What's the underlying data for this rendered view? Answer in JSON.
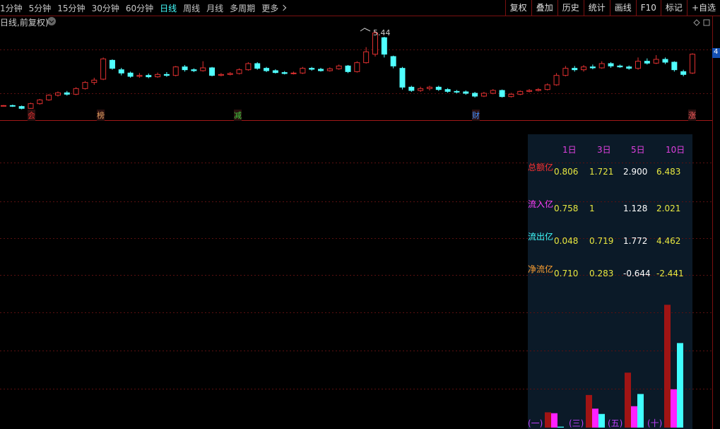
{
  "toolbar": {
    "periods": [
      "1分钟",
      "5分钟",
      "15分钟",
      "30分钟",
      "60分钟",
      "日线",
      "周线",
      "月线",
      "多周期",
      "更多"
    ],
    "buttons": [
      "复权",
      "叠加",
      "历史",
      "统计",
      "画线",
      "F10",
      "标记",
      "+自选"
    ]
  },
  "chart": {
    "title": "日线,前复权)",
    "peak_label": "5.44",
    "right_tag": "4",
    "ylim": [
      3.55,
      5.8
    ],
    "markers": [
      "会",
      "榜",
      "减",
      "财",
      "涨"
    ],
    "candles": [
      [
        3.85,
        3.86,
        3.87,
        3.84
      ],
      [
        3.86,
        3.85,
        3.88,
        3.83
      ],
      [
        3.84,
        3.8,
        3.86,
        3.78
      ],
      [
        3.8,
        3.9,
        3.92,
        3.79
      ],
      [
        3.9,
        3.98,
        4.0,
        3.88
      ],
      [
        3.98,
        4.08,
        4.1,
        3.96
      ],
      [
        4.08,
        4.13,
        4.16,
        4.05
      ],
      [
        4.13,
        4.1,
        4.17,
        4.07
      ],
      [
        4.1,
        4.22,
        4.25,
        4.08
      ],
      [
        4.22,
        4.35,
        4.38,
        4.2
      ],
      [
        4.35,
        4.4,
        4.45,
        4.3
      ],
      [
        4.42,
        4.85,
        4.88,
        4.4
      ],
      [
        4.82,
        4.65,
        4.84,
        4.62
      ],
      [
        4.62,
        4.55,
        4.66,
        4.5
      ],
      [
        4.55,
        4.48,
        4.58,
        4.45
      ],
      [
        4.48,
        4.5,
        4.55,
        4.45
      ],
      [
        4.5,
        4.47,
        4.54,
        4.44
      ],
      [
        4.47,
        4.52,
        4.56,
        4.45
      ],
      [
        4.52,
        4.5,
        4.57,
        4.47
      ],
      [
        4.5,
        4.68,
        4.7,
        4.48
      ],
      [
        4.68,
        4.62,
        4.72,
        4.58
      ],
      [
        4.62,
        4.6,
        4.65,
        4.57
      ],
      [
        4.6,
        4.66,
        4.8,
        4.58
      ],
      [
        4.66,
        4.5,
        4.68,
        4.48
      ],
      [
        4.5,
        4.52,
        4.55,
        4.48
      ],
      [
        4.52,
        4.54,
        4.57,
        4.5
      ],
      [
        4.54,
        4.62,
        4.65,
        4.52
      ],
      [
        4.62,
        4.75,
        4.78,
        4.6
      ],
      [
        4.75,
        4.65,
        4.78,
        4.62
      ],
      [
        4.65,
        4.6,
        4.68,
        4.57
      ],
      [
        4.6,
        4.56,
        4.63,
        4.54
      ],
      [
        4.56,
        4.54,
        4.59,
        4.52
      ],
      [
        4.54,
        4.55,
        4.58,
        4.52
      ],
      [
        4.55,
        4.65,
        4.68,
        4.53
      ],
      [
        4.65,
        4.63,
        4.68,
        4.6
      ],
      [
        4.63,
        4.6,
        4.66,
        4.58
      ],
      [
        4.6,
        4.64,
        4.67,
        4.58
      ],
      [
        4.64,
        4.7,
        4.73,
        4.62
      ],
      [
        4.7,
        4.58,
        4.72,
        4.55
      ],
      [
        4.58,
        4.77,
        4.8,
        4.56
      ],
      [
        4.77,
        5.0,
        5.1,
        4.75
      ],
      [
        4.95,
        5.4,
        5.44,
        4.9
      ],
      [
        5.3,
        4.95,
        5.32,
        4.88
      ],
      [
        4.9,
        4.7,
        4.92,
        4.65
      ],
      [
        4.65,
        4.25,
        4.68,
        4.2
      ],
      [
        4.25,
        4.18,
        4.28,
        4.15
      ],
      [
        4.18,
        4.22,
        4.26,
        4.15
      ],
      [
        4.22,
        4.25,
        4.28,
        4.18
      ],
      [
        4.25,
        4.2,
        4.28,
        4.17
      ],
      [
        4.2,
        4.16,
        4.23,
        4.13
      ],
      [
        4.16,
        4.15,
        4.19,
        4.12
      ],
      [
        4.15,
        4.12,
        4.18,
        4.09
      ],
      [
        4.12,
        4.06,
        4.15,
        4.03
      ],
      [
        4.06,
        4.12,
        4.15,
        4.04
      ],
      [
        4.12,
        4.18,
        4.21,
        4.1
      ],
      [
        4.18,
        4.05,
        4.2,
        4.03
      ],
      [
        4.05,
        4.1,
        4.13,
        4.03
      ],
      [
        4.1,
        4.16,
        4.18,
        4.08
      ],
      [
        4.16,
        4.18,
        4.21,
        4.14
      ],
      [
        4.18,
        4.2,
        4.23,
        4.16
      ],
      [
        4.2,
        4.3,
        4.33,
        4.18
      ],
      [
        4.3,
        4.5,
        4.55,
        4.28
      ],
      [
        4.5,
        4.65,
        4.7,
        4.48
      ],
      [
        4.65,
        4.62,
        4.7,
        4.58
      ],
      [
        4.62,
        4.68,
        4.72,
        4.58
      ],
      [
        4.68,
        4.66,
        4.73,
        4.63
      ],
      [
        4.66,
        4.75,
        4.8,
        4.64
      ],
      [
        4.75,
        4.7,
        4.78,
        4.66
      ],
      [
        4.7,
        4.68,
        4.73,
        4.66
      ],
      [
        4.68,
        4.65,
        4.71,
        4.62
      ],
      [
        4.65,
        4.8,
        4.88,
        4.62
      ],
      [
        4.8,
        4.76,
        4.86,
        4.73
      ],
      [
        4.76,
        4.84,
        4.93,
        4.74
      ],
      [
        4.84,
        4.78,
        4.88,
        4.74
      ],
      [
        4.78,
        4.62,
        4.8,
        4.58
      ],
      [
        4.58,
        4.52,
        4.62,
        4.48
      ],
      [
        4.55,
        4.95,
        4.97,
        4.53
      ]
    ]
  },
  "flow_table": {
    "columns": [
      "1日",
      "3日",
      "5日",
      "10日"
    ],
    "rows": [
      {
        "label": "总额亿",
        "values": [
          "0.806",
          "1.721",
          "2.900",
          "6.483"
        ]
      },
      {
        "label": "流入亿",
        "values": [
          "0.758",
          "1",
          "1.128",
          "2.021"
        ]
      },
      {
        "label": "流出亿",
        "values": [
          "0.048",
          "0.719",
          "1.772",
          "4.462"
        ]
      },
      {
        "label": "净流亿",
        "values": [
          "0.710",
          "0.283",
          "-0.644",
          "-2.441"
        ]
      }
    ],
    "bar_labels": [
      "(一)",
      "(三)",
      "(五)",
      "(十)"
    ]
  }
}
